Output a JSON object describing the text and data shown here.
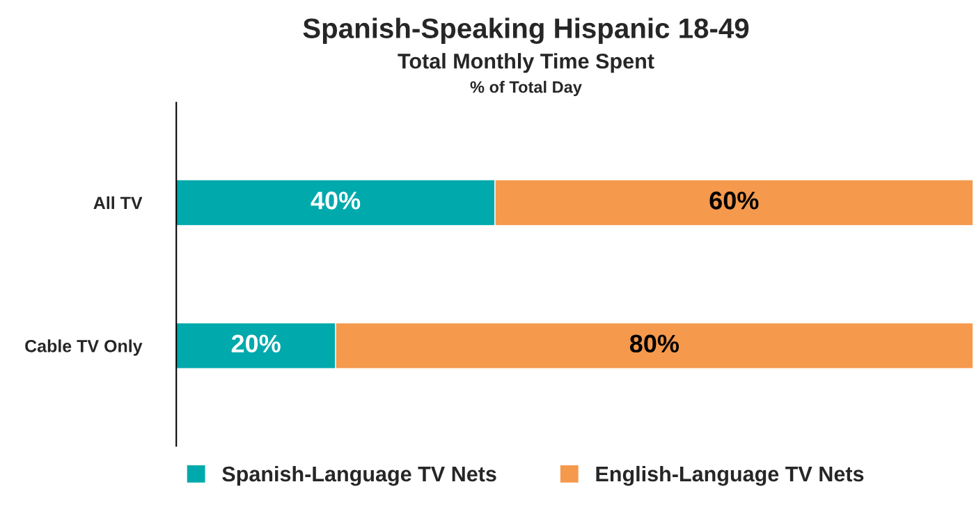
{
  "chart_data": {
    "type": "bar",
    "orientation": "horizontal",
    "stacked": true,
    "title": "Spanish-Speaking Hispanic 18-49",
    "subtitle": "Total Monthly Time Spent",
    "annotations": [
      "% of Total Day"
    ],
    "categories": [
      "All TV",
      "Cable TV Only"
    ],
    "series": [
      {
        "name": "Spanish-Language TV Nets",
        "color": "#00a9ac",
        "values": [
          40,
          20
        ],
        "value_labels": [
          "40%",
          "20%"
        ]
      },
      {
        "name": "English-Language TV Nets",
        "color": "#f5994c",
        "values": [
          60,
          80
        ],
        "value_labels": [
          "60%",
          "80%"
        ]
      }
    ],
    "xlim": [
      0,
      100
    ],
    "tick_labels": "y",
    "grid": false,
    "legend": "bottom"
  }
}
